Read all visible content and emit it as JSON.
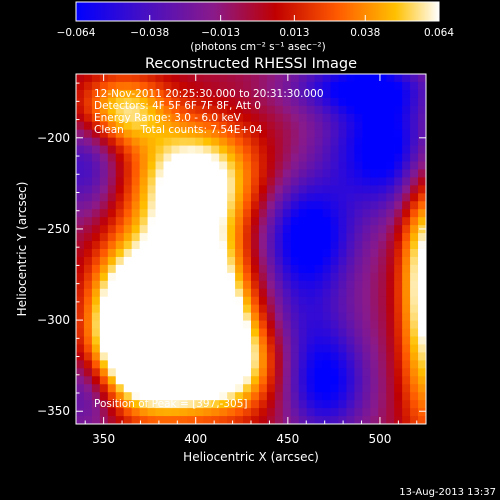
{
  "chart_data": {
    "type": "heatmap",
    "title": "Reconstructed RHESSI Image",
    "xlabel": "Heliocentric X (arcsec)",
    "ylabel": "Heliocentric Y (arcsec)",
    "xlim": [
      335,
      525
    ],
    "ylim": [
      -357,
      -165
    ],
    "x_ticks": [
      350,
      400,
      450,
      500
    ],
    "y_ticks": [
      -200,
      -250,
      -300,
      -350
    ],
    "x_tick_labels": [
      "350",
      "400",
      "450",
      "500"
    ],
    "y_tick_labels": [
      "−200",
      "−250",
      "−300",
      "−350"
    ],
    "colorbar": {
      "range": [
        -0.064,
        0.064
      ],
      "tick_values": [
        -0.064,
        -0.038,
        -0.013,
        0.013,
        0.038,
        0.064
      ],
      "tick_labels": [
        "−0.064",
        "−0.038",
        "−0.013",
        "0.013",
        "0.038",
        "0.064"
      ],
      "label": "(photons cm⁻² s⁻¹ asec⁻²)",
      "colormap": [
        "#0000ff",
        "#7a1a9a",
        "#c00000",
        "#ff4a00",
        "#ffc000",
        "#ffffff"
      ]
    },
    "annotations": {
      "line1": "12-Nov-2011 20:25:30.000 to 20:31:30.000",
      "line2": "Detectors: 4F 5F 6F 7F 8F, Att 0",
      "line3": "Energy Range: 3.0 - 6.0 keV",
      "line4": "Clean     Total counts: 7.54E+04",
      "peak": "Position of Peak = [397,-305]"
    },
    "peak": [
      397,
      -305
    ],
    "sources": [
      {
        "x": 400,
        "y": -222,
        "sx": 24,
        "sy": 22,
        "amp": 0.08
      },
      {
        "x": 393,
        "y": -270,
        "sx": 22,
        "sy": 24,
        "amp": 0.085
      },
      {
        "x": 397,
        "y": -305,
        "sx": 26,
        "sy": 22,
        "amp": 0.102
      },
      {
        "x": 378,
        "y": -330,
        "sx": 22,
        "sy": 18,
        "amp": 0.07
      },
      {
        "x": 420,
        "y": -325,
        "sx": 18,
        "sy": 20,
        "amp": 0.05
      },
      {
        "x": 360,
        "y": -185,
        "sx": 18,
        "sy": 14,
        "amp": 0.06
      },
      {
        "x": 358,
        "y": -300,
        "sx": 12,
        "sy": 26,
        "amp": 0.06
      },
      {
        "x": 525,
        "y": -280,
        "sx": 10,
        "sy": 55,
        "amp": 0.08
      },
      {
        "x": 505,
        "y": -205,
        "sx": 24,
        "sy": 24,
        "amp": -0.07
      },
      {
        "x": 488,
        "y": -172,
        "sx": 26,
        "sy": 10,
        "amp": -0.05
      },
      {
        "x": 460,
        "y": -255,
        "sx": 18,
        "sy": 22,
        "amp": -0.07
      },
      {
        "x": 470,
        "y": -335,
        "sx": 16,
        "sy": 20,
        "amp": -0.06
      },
      {
        "x": 453,
        "y": -300,
        "sx": 22,
        "sy": 18,
        "amp": -0.03
      },
      {
        "x": 340,
        "y": -215,
        "sx": 14,
        "sy": 20,
        "amp": -0.04
      },
      {
        "x": 343,
        "y": -340,
        "sx": 14,
        "sy": 16,
        "amp": -0.04
      }
    ],
    "baseline": -0.005,
    "grid": false
  },
  "footer": {
    "timestamp": "13-Aug-2013 13:37"
  }
}
